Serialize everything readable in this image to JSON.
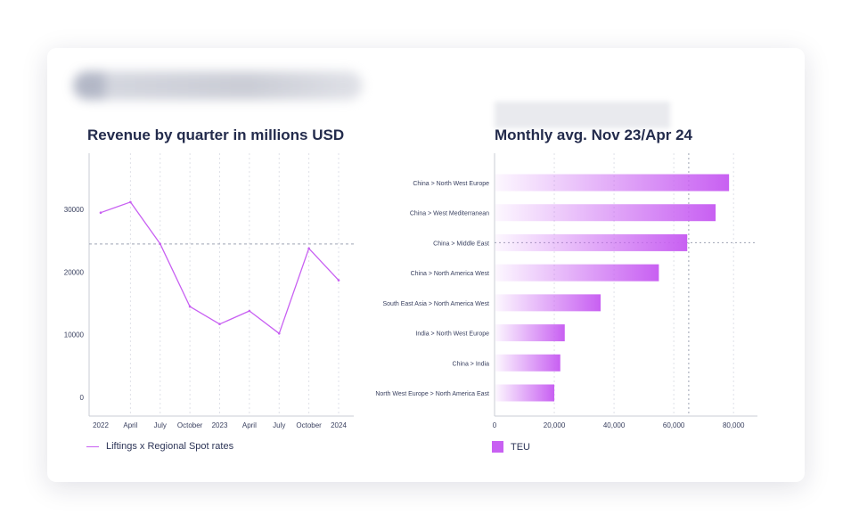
{
  "colors": {
    "accent": "#c860f2",
    "title": "#232b4c",
    "text": "#2d3557"
  },
  "chart_data": [
    {
      "type": "line",
      "title": "Revenue by quarter in millions USD",
      "x": [
        "2022 Q1",
        "2022 Q2",
        "2022 Q3",
        "2022 Q4",
        "2023 Q1",
        "2023 Q2",
        "2023 Q3",
        "2023 Q4",
        "2024 Q1"
      ],
      "x_tick_labels": [
        "2022",
        "April",
        "July",
        "October",
        "2023",
        "April",
        "July",
        "October",
        "2024"
      ],
      "y_ticks": [
        "0",
        "10000",
        "20000",
        "30000"
      ],
      "ylim": [
        -3000,
        39000
      ],
      "reference_line": 24500,
      "series": [
        {
          "name": "Liftings x Regional Spot rates",
          "values": [
            29500,
            31200,
            24500,
            14500,
            11700,
            13800,
            10200,
            23800,
            18700
          ]
        }
      ],
      "legend": "bottom-left",
      "grid": "vertical dotted"
    },
    {
      "type": "bar",
      "orientation": "horizontal",
      "title": "Monthly avg. Nov 23/Apr 24",
      "categories": [
        "China > North West Europe",
        "China > West Mediterranean",
        "China > Middle East",
        "China > North America West",
        "South East Asia > North America West",
        "India > North West Europe",
        "China > India",
        "North West Europe > North America East"
      ],
      "x_ticks": [
        "0",
        "20,000",
        "40,000",
        "60,000",
        "80,000"
      ],
      "xlim": [
        0,
        88000
      ],
      "reference_line": 65000,
      "series": [
        {
          "name": "TEU",
          "values": [
            78500,
            74000,
            64500,
            55000,
            35500,
            23500,
            22000,
            20000
          ]
        }
      ],
      "legend": "bottom-left",
      "grid": "vertical dotted"
    }
  ]
}
